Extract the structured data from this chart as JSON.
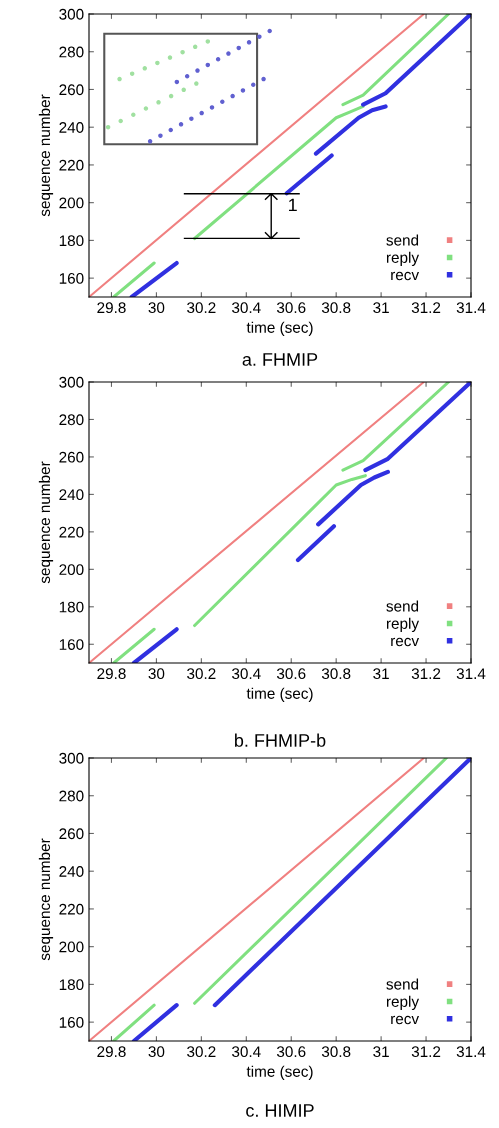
{
  "chart_data": [
    {
      "type": "line",
      "xlabel": "time (sec)",
      "ylabel": "sequence number",
      "xlim": [
        29.7,
        31.4
      ],
      "ylim": [
        150,
        300
      ],
      "xticks": [
        29.8,
        30,
        30.2,
        30.4,
        30.6,
        30.8,
        31,
        31.2,
        31.4
      ],
      "yticks": [
        160,
        180,
        200,
        220,
        240,
        260,
        280,
        300
      ],
      "legend": "bottom right",
      "annotations": [
        "1",
        "a. FHMIP"
      ],
      "series": [
        {
          "name": "send",
          "color": "#f08080",
          "x": [
            29.7,
            31.19
          ],
          "values": [
            150,
            300
          ]
        },
        {
          "name": "reply",
          "color": "#80e080",
          "x": [
            29.81,
            29.99,
            null,
            30.17,
            30.8,
            30.86,
            30.92,
            null,
            30.83,
            30.92,
            31.3
          ],
          "values": [
            150,
            168,
            null,
            181,
            245,
            248,
            251,
            null,
            252,
            257,
            300
          ]
        },
        {
          "name": "recv",
          "color": "#3030e0",
          "x": [
            29.89,
            30.09,
            null,
            30.58,
            30.78,
            null,
            30.71,
            30.9,
            30.96,
            31.02,
            null,
            30.92,
            31.02,
            31.4
          ],
          "values": [
            150,
            168,
            null,
            205,
            225,
            null,
            226,
            245,
            249,
            251,
            null,
            252,
            258,
            300
          ]
        }
      ]
    },
    {
      "type": "line",
      "xlabel": "time (sec)",
      "ylabel": "sequence number",
      "xlim": [
        29.7,
        31.4
      ],
      "ylim": [
        150,
        300
      ],
      "xticks": [
        29.8,
        30,
        30.2,
        30.4,
        30.6,
        30.8,
        31,
        31.2,
        31.4
      ],
      "yticks": [
        160,
        180,
        200,
        220,
        240,
        260,
        280,
        300
      ],
      "legend": "bottom right",
      "annotations": [
        "b. FHMIP-b"
      ],
      "series": [
        {
          "name": "send",
          "color": "#f08080",
          "x": [
            29.7,
            31.19
          ],
          "values": [
            150,
            300
          ]
        },
        {
          "name": "reply",
          "color": "#80e080",
          "x": [
            29.81,
            29.99,
            null,
            30.17,
            30.8,
            30.87,
            30.93,
            null,
            30.83,
            30.92,
            31.3
          ],
          "values": [
            150,
            168,
            null,
            170,
            245,
            248,
            250,
            null,
            253,
            258,
            300
          ]
        },
        {
          "name": "recv",
          "color": "#3030e0",
          "x": [
            29.9,
            30.09,
            null,
            30.63,
            30.79,
            null,
            30.72,
            30.91,
            30.97,
            31.03,
            null,
            30.93,
            31.03,
            31.4
          ],
          "values": [
            150,
            168,
            null,
            205,
            223,
            null,
            224,
            245,
            249,
            252,
            null,
            253,
            259,
            300
          ]
        }
      ]
    },
    {
      "type": "line",
      "xlabel": "time (sec)",
      "ylabel": "sequence number",
      "xlim": [
        29.7,
        31.4
      ],
      "ylim": [
        150,
        300
      ],
      "xticks": [
        29.8,
        30,
        30.2,
        30.4,
        30.6,
        30.8,
        31,
        31.2,
        31.4
      ],
      "yticks": [
        160,
        180,
        200,
        220,
        240,
        260,
        280,
        300
      ],
      "legend": "bottom right",
      "annotations": [
        "c. HIMIP"
      ],
      "series": [
        {
          "name": "send",
          "color": "#f08080",
          "x": [
            29.7,
            31.19
          ],
          "values": [
            150,
            300
          ]
        },
        {
          "name": "reply",
          "color": "#80e080",
          "x": [
            29.81,
            29.99,
            null,
            30.17,
            31.29
          ],
          "values": [
            150,
            169,
            null,
            170,
            300
          ]
        },
        {
          "name": "recv",
          "color": "#3030e0",
          "x": [
            29.9,
            30.09,
            null,
            30.26,
            31.4
          ],
          "values": [
            150,
            169,
            null,
            169,
            300
          ]
        }
      ]
    }
  ]
}
